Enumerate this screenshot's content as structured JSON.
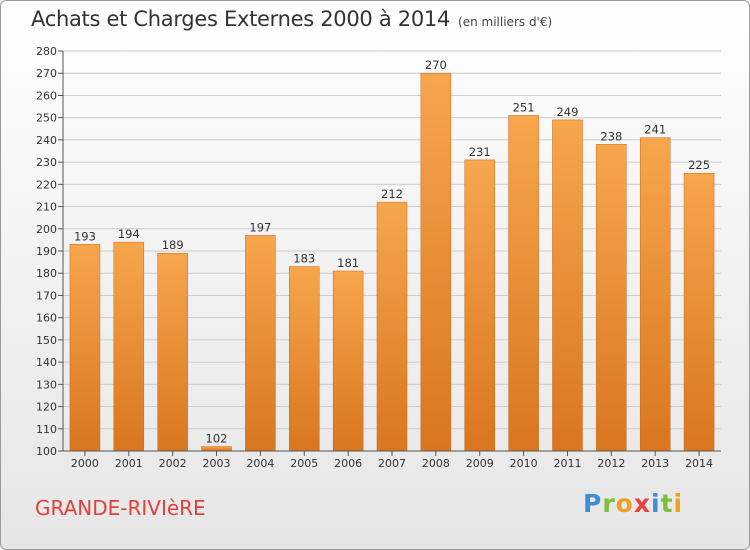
{
  "title": "Achats et Charges Externes 2000 à 2014",
  "subtitle": "(en milliers d'€)",
  "commune": "GRANDE-RIVIèRE",
  "logo": {
    "letters": [
      "P",
      "r",
      "o",
      "x",
      "i",
      "t",
      "i"
    ],
    "colors": [
      "#3a8fd6",
      "#7bbf3a",
      "#f0a020",
      "#e94040",
      "#3a8fd6",
      "#7bbf3a",
      "#f0a020"
    ]
  },
  "colors": {
    "bar_top": "#f7a64c",
    "bar_bottom": "#d9761f",
    "grid": "#cccccc",
    "axis": "#555555"
  },
  "chart_data": {
    "type": "bar",
    "categories": [
      "2000",
      "2001",
      "2002",
      "2003",
      "2004",
      "2005",
      "2006",
      "2007",
      "2008",
      "2009",
      "2010",
      "2011",
      "2012",
      "2013",
      "2014"
    ],
    "values": [
      193,
      194,
      189,
      102,
      197,
      183,
      181,
      212,
      270,
      231,
      251,
      249,
      238,
      241,
      225
    ],
    "ylim": [
      100,
      280
    ],
    "yticks": [
      100,
      110,
      120,
      130,
      140,
      150,
      160,
      170,
      180,
      190,
      200,
      210,
      220,
      230,
      240,
      250,
      260,
      270,
      280
    ],
    "grid": true
  }
}
